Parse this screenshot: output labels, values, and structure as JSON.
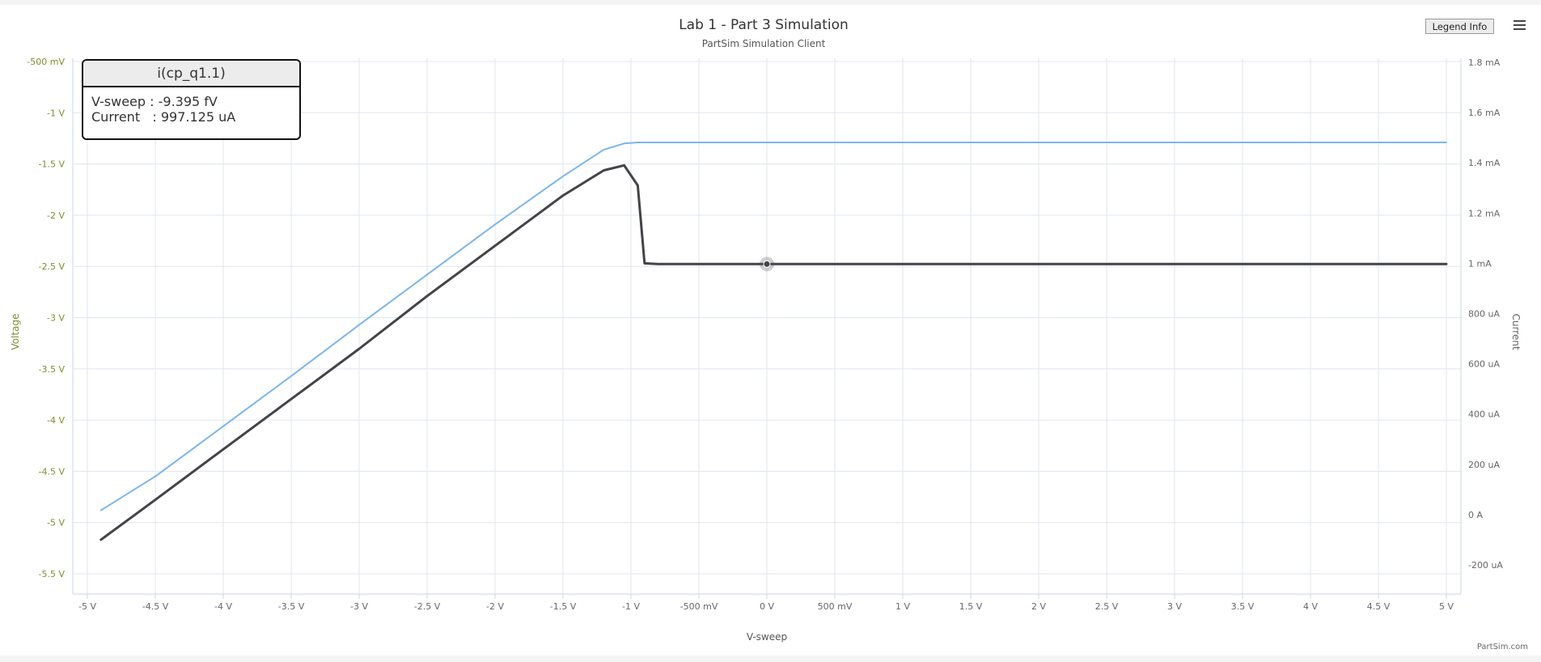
{
  "chart_data": {
    "type": "line",
    "title": "Lab 1 - Part 3 Simulation",
    "subtitle": "PartSim Simulation Client",
    "xlabel": "V-sweep",
    "ylabel_left": "Voltage",
    "ylabel_right": "Current",
    "xlim": [
      -5,
      5
    ],
    "ylim_left": [
      -5.5,
      -0.5
    ],
    "ylim_right": [
      -0.0002,
      0.0018
    ],
    "x_ticks": [
      {
        "value": -5,
        "label": "-5 V"
      },
      {
        "value": -4.5,
        "label": "-4.5 V"
      },
      {
        "value": -4,
        "label": "-4 V"
      },
      {
        "value": -3.5,
        "label": "-3.5 V"
      },
      {
        "value": -3,
        "label": "-3 V"
      },
      {
        "value": -2.5,
        "label": "-2.5 V"
      },
      {
        "value": -2,
        "label": "-2 V"
      },
      {
        "value": -1.5,
        "label": "-1.5 V"
      },
      {
        "value": -1,
        "label": "-1 V"
      },
      {
        "value": -0.5,
        "label": "-500 mV"
      },
      {
        "value": 0,
        "label": "0 V"
      },
      {
        "value": 0.5,
        "label": "500 mV"
      },
      {
        "value": 1,
        "label": "1 V"
      },
      {
        "value": 1.5,
        "label": "1.5 V"
      },
      {
        "value": 2,
        "label": "2 V"
      },
      {
        "value": 2.5,
        "label": "2.5 V"
      },
      {
        "value": 3,
        "label": "3 V"
      },
      {
        "value": 3.5,
        "label": "3.5 V"
      },
      {
        "value": 4,
        "label": "4 V"
      },
      {
        "value": 4.5,
        "label": "4.5 V"
      },
      {
        "value": 5,
        "label": "5 V"
      }
    ],
    "y_ticks_left": [
      {
        "value": -0.5,
        "label": "-500 mV"
      },
      {
        "value": -1,
        "label": "-1 V"
      },
      {
        "value": -1.5,
        "label": "-1.5 V"
      },
      {
        "value": -2,
        "label": "-2 V"
      },
      {
        "value": -2.5,
        "label": "-2.5 V"
      },
      {
        "value": -3,
        "label": "-3 V"
      },
      {
        "value": -3.5,
        "label": "-3.5 V"
      },
      {
        "value": -4,
        "label": "-4 V"
      },
      {
        "value": -4.5,
        "label": "-4.5 V"
      },
      {
        "value": -5,
        "label": "-5 V"
      },
      {
        "value": -5.5,
        "label": "-5.5 V"
      }
    ],
    "y_ticks_right": [
      {
        "value": 0.0018,
        "label": "1.8 mA"
      },
      {
        "value": 0.0016,
        "label": "1.6 mA"
      },
      {
        "value": 0.0014,
        "label": "1.4 mA"
      },
      {
        "value": 0.0012,
        "label": "1.2 mA"
      },
      {
        "value": 0.001,
        "label": "1 mA"
      },
      {
        "value": 0.0008,
        "label": "800 uA"
      },
      {
        "value": 0.0006,
        "label": "600 uA"
      },
      {
        "value": 0.0004,
        "label": "400 uA"
      },
      {
        "value": 0.0002,
        "label": "200 uA"
      },
      {
        "value": 0,
        "label": "0 A"
      },
      {
        "value": -0.0002,
        "label": "-200 uA"
      }
    ],
    "grid": true,
    "series": [
      {
        "axis": "left",
        "color": "#7cb5ec",
        "x": [
          -4.9,
          -4.5,
          -4.0,
          -3.5,
          -3.0,
          -2.5,
          -2.0,
          -1.5,
          -1.2,
          -1.05,
          -0.95,
          -0.9,
          -0.8,
          0,
          1,
          2,
          3,
          4,
          5
        ],
        "y": [
          -4.88,
          -4.55,
          -4.06,
          -3.57,
          -3.07,
          -2.58,
          -2.09,
          -1.62,
          -1.36,
          -1.3,
          -1.29,
          -1.29,
          -1.29,
          -1.29,
          -1.29,
          -1.29,
          -1.29,
          -1.29,
          -1.29
        ]
      },
      {
        "axis": "right",
        "color": "#434348",
        "x": [
          -4.9,
          -4.5,
          -4.0,
          -3.5,
          -3.0,
          -2.5,
          -2.0,
          -1.5,
          -1.2,
          -1.05,
          -0.95,
          -0.9,
          -0.8,
          0,
          1,
          2,
          3,
          4,
          5
        ],
        "y": [
          -0.0001,
          5.9e-05,
          0.00026,
          0.00046,
          0.00066,
          0.00087,
          0.00107,
          0.00127,
          0.00137,
          0.00139,
          0.00131,
          0.001,
          0.000997,
          0.000997,
          0.000997,
          0.000997,
          0.000997,
          0.000997,
          0.000997
        ]
      }
    ],
    "hover_point": {
      "x": 0,
      "y": 0.000997125
    }
  },
  "tooltip": {
    "title": "i(cp_q1.1)",
    "line1": "V-sweep : -9.395 fV",
    "line2": "Current   : 997.125 uA"
  },
  "controls": {
    "legend_button": "Legend Info"
  },
  "credit": "PartSim.com",
  "colors": {
    "left_axis": "#7a8f2c",
    "right_axis": "#666666",
    "grid": "#e0e6ee"
  }
}
